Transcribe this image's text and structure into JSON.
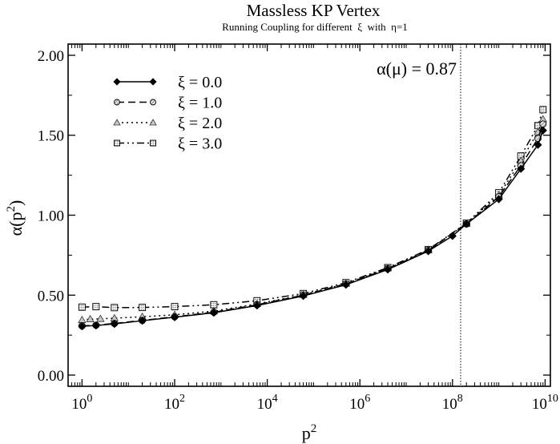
{
  "chart_data": {
    "type": "line",
    "title": "Massless KP Vertex",
    "subtitle": "Running Coupling for different  ξ  with  η=1",
    "xlabel": "p",
    "xlabel_sup": "2",
    "ylabel": "α(p",
    "ylabel_sup": "2",
    "ylabel_close": ")",
    "x_scale": "log",
    "xlim": [
      0.5,
      13000000000.0
    ],
    "ylim": [
      -0.07,
      2.07
    ],
    "x_ticks": [
      1,
      100,
      10000,
      1000000,
      100000000,
      10000000000
    ],
    "x_tick_labels": [
      {
        "base": "10",
        "exp": "0"
      },
      {
        "base": "10",
        "exp": "2"
      },
      {
        "base": "10",
        "exp": "4"
      },
      {
        "base": "10",
        "exp": "6"
      },
      {
        "base": "10",
        "exp": "8"
      },
      {
        "base": "10",
        "exp": "10"
      }
    ],
    "y_ticks": [
      0.0,
      0.5,
      1.0,
      1.5,
      2.0
    ],
    "y_tick_labels": [
      "0.00",
      "0.50",
      "1.00",
      "1.50",
      "2.00"
    ],
    "grid": false,
    "legend_position": "top-left",
    "annotation": {
      "text": "α(μ) = 0.87",
      "x": 150000000
    },
    "series": [
      {
        "name": "ξ = 0.0",
        "color": "#000000",
        "dash": "",
        "marker": "diamond-filled",
        "points": [
          [
            1,
            0.305
          ],
          [
            2,
            0.31
          ],
          [
            5,
            0.32
          ],
          [
            20,
            0.34
          ],
          [
            100,
            0.362
          ],
          [
            700,
            0.39
          ],
          [
            6000,
            0.435
          ],
          [
            60000,
            0.495
          ],
          [
            500000,
            0.565
          ],
          [
            4000000,
            0.66
          ],
          [
            30000000,
            0.775
          ],
          [
            100000000,
            0.87
          ],
          [
            200000000,
            0.945
          ],
          [
            1000000000,
            1.1
          ],
          [
            3000000000,
            1.29
          ],
          [
            7000000000,
            1.44
          ],
          [
            9000000000,
            1.53
          ]
        ]
      },
      {
        "name": "ξ = 1.0",
        "color": "#000000",
        "dash": "9,5",
        "marker": "circle-hatched",
        "points": [
          [
            1,
            0.308
          ],
          [
            2,
            0.312
          ],
          [
            5,
            0.323
          ],
          [
            20,
            0.342
          ],
          [
            100,
            0.365
          ],
          [
            700,
            0.393
          ],
          [
            6000,
            0.44
          ],
          [
            60000,
            0.5
          ],
          [
            500000,
            0.57
          ],
          [
            4000000,
            0.665
          ],
          [
            30000000,
            0.78
          ],
          [
            200000000,
            0.945
          ],
          [
            1000000000,
            1.115
          ],
          [
            3000000000,
            1.31
          ],
          [
            7000000000,
            1.48
          ],
          [
            9000000000,
            1.57
          ]
        ]
      },
      {
        "name": "ξ = 2.0",
        "color": "#000000",
        "dash": "2,4",
        "marker": "triangle-gray",
        "points": [
          [
            1,
            0.345
          ],
          [
            1.5,
            0.35
          ],
          [
            2.5,
            0.352
          ],
          [
            5,
            0.356
          ],
          [
            20,
            0.365
          ],
          [
            100,
            0.377
          ],
          [
            700,
            0.4
          ],
          [
            6000,
            0.445
          ],
          [
            60000,
            0.502
          ],
          [
            500000,
            0.572
          ],
          [
            4000000,
            0.668
          ],
          [
            30000000,
            0.782
          ],
          [
            200000000,
            0.948
          ],
          [
            1000000000,
            1.125
          ],
          [
            3000000000,
            1.34
          ],
          [
            7000000000,
            1.52
          ],
          [
            9000000000,
            1.6
          ]
        ]
      },
      {
        "name": "ξ = 3.0",
        "color": "#000000",
        "dash": "9,4,2,4,2,4",
        "marker": "square-dotted",
        "points": [
          [
            1,
            0.425
          ],
          [
            2,
            0.428
          ],
          [
            5,
            0.422
          ],
          [
            20,
            0.423
          ],
          [
            100,
            0.428
          ],
          [
            700,
            0.44
          ],
          [
            6000,
            0.465
          ],
          [
            60000,
            0.51
          ],
          [
            500000,
            0.578
          ],
          [
            4000000,
            0.672
          ],
          [
            30000000,
            0.785
          ],
          [
            200000000,
            0.95
          ],
          [
            1000000000,
            1.14
          ],
          [
            3000000000,
            1.37
          ],
          [
            7000000000,
            1.56
          ],
          [
            9000000000,
            1.66
          ]
        ]
      }
    ]
  }
}
